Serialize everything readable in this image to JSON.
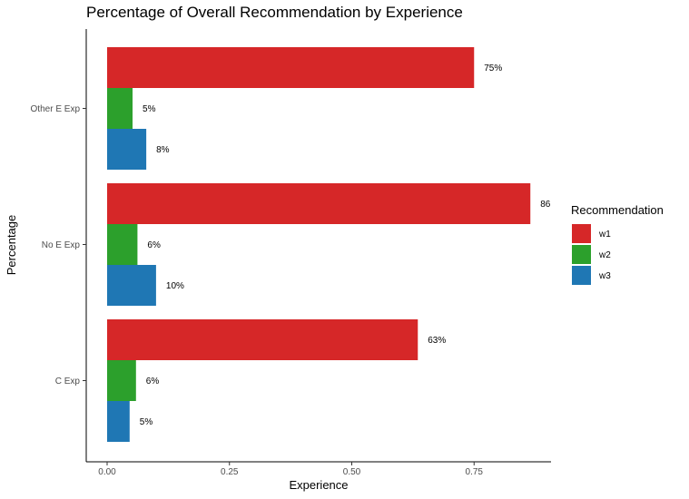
{
  "chart_data": {
    "type": "bar",
    "orientation": "horizontal",
    "title": "Percentage of Overall Recommendation by Experience",
    "xlabel": "Experience",
    "ylabel": "Percentage",
    "xlim": [
      0,
      0.9
    ],
    "xticks": [
      "0.00",
      "0.25",
      "0.50",
      "0.75"
    ],
    "xtick_values": [
      0,
      0.25,
      0.5,
      0.75
    ],
    "categories": [
      "Other E Exp",
      "No E Exp",
      "C Exp"
    ],
    "series": [
      {
        "name": "w1",
        "color": "#d62728",
        "values": [
          0.75,
          0.865,
          0.635
        ],
        "labels": [
          "75%",
          "86",
          "63%"
        ]
      },
      {
        "name": "w2",
        "color": "#2ca02c",
        "values": [
          0.052,
          0.062,
          0.059
        ],
        "labels": [
          "5%",
          "6%",
          "6%"
        ]
      },
      {
        "name": "w3",
        "color": "#1f77b4",
        "values": [
          0.08,
          0.1,
          0.046
        ],
        "labels": [
          "8%",
          "10%",
          "5%"
        ]
      }
    ],
    "legend": {
      "title": "Recommendation",
      "position": "right"
    },
    "grid": false
  }
}
